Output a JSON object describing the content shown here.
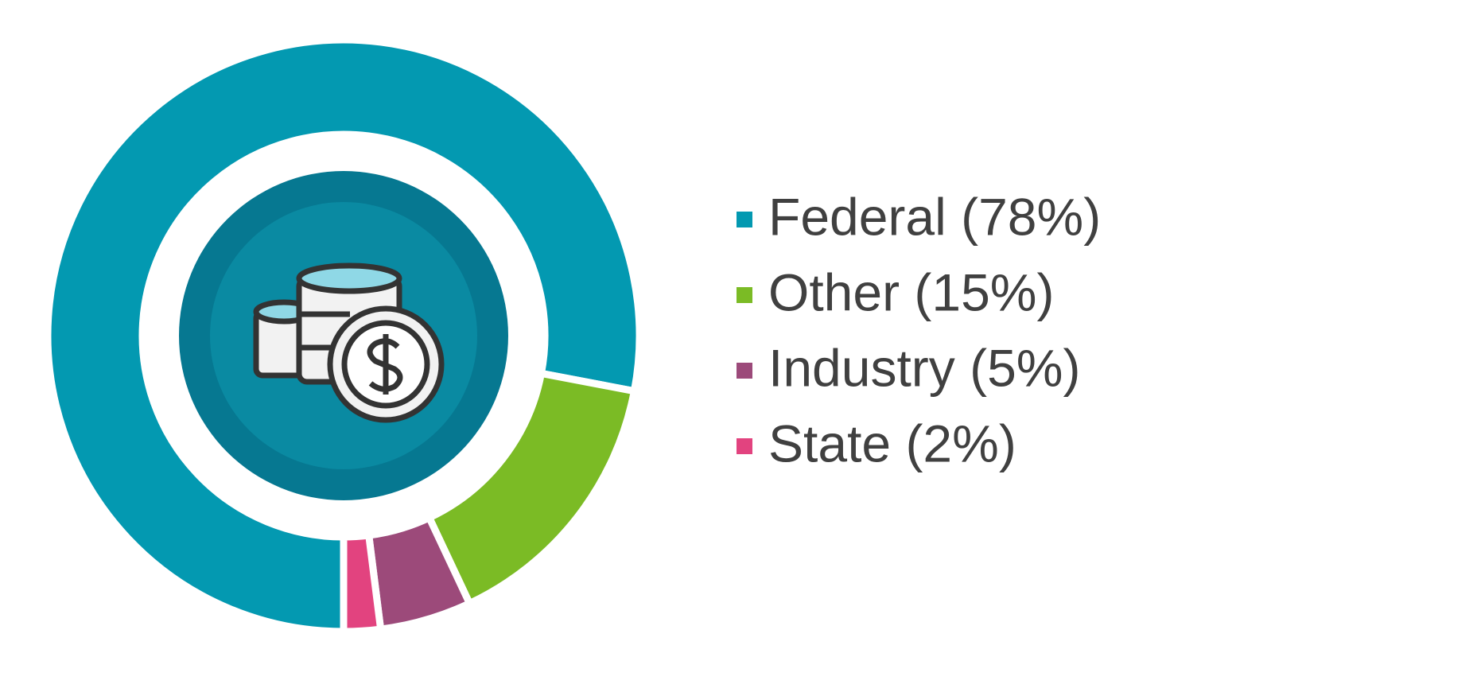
{
  "chart_data": {
    "type": "donut",
    "categories": [
      "Federal (78%)",
      "Other (15%)",
      "Industry (5%)",
      "State (2%)"
    ],
    "values": [
      78,
      15,
      5,
      2
    ],
    "colors": [
      "#0399b1",
      "#7bbb25",
      "#9c4a7a",
      "#e2437f"
    ],
    "legend": "right"
  }
}
